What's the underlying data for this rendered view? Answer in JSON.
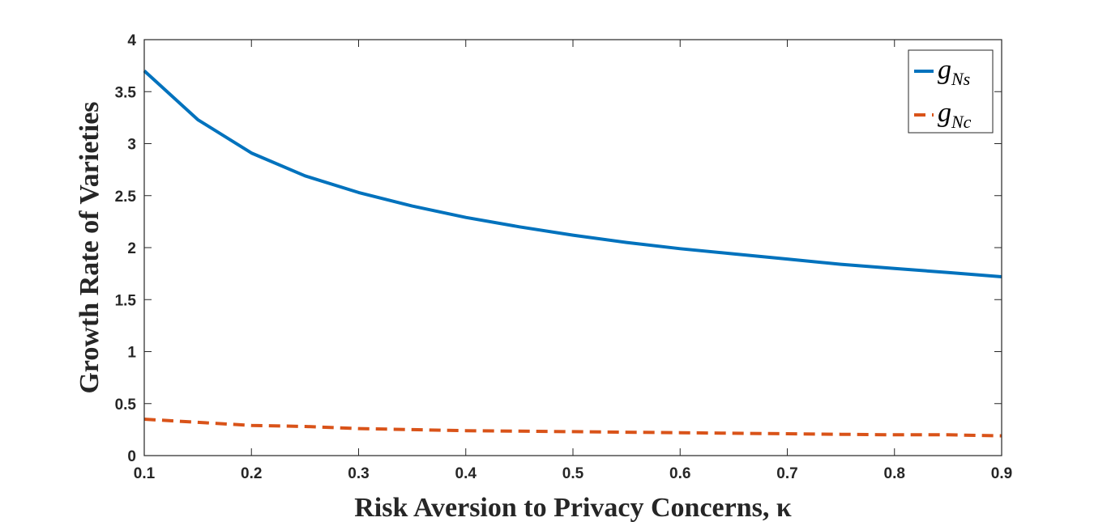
{
  "chart_data": {
    "type": "line",
    "xlabel": "Risk Aversion to Privacy Concerns, κ",
    "ylabel": "Growth Rate of Varieties",
    "xlim": [
      0.1,
      0.9
    ],
    "ylim": [
      0,
      4
    ],
    "xticks": [
      "0.1",
      "0.2",
      "0.3",
      "0.4",
      "0.5",
      "0.6",
      "0.7",
      "0.8",
      "0.9"
    ],
    "yticks": [
      "0",
      "0.5",
      "1",
      "1.5",
      "2",
      "2.5",
      "3",
      "3.5",
      "4"
    ],
    "grid": false,
    "legend_position": "top-right",
    "x": [
      0.1,
      0.15,
      0.2,
      0.25,
      0.3,
      0.35,
      0.4,
      0.45,
      0.5,
      0.55,
      0.6,
      0.65,
      0.7,
      0.75,
      0.8,
      0.85,
      0.9
    ],
    "series": [
      {
        "name": "g_Ns",
        "legend_main": "g",
        "legend_sub": "Ns",
        "color": "#0072BD",
        "style": "solid",
        "values": [
          3.7,
          3.23,
          2.91,
          2.69,
          2.53,
          2.4,
          2.29,
          2.2,
          2.12,
          2.05,
          1.99,
          1.94,
          1.89,
          1.84,
          1.8,
          1.76,
          1.72
        ]
      },
      {
        "name": "g_Nc",
        "legend_main": "g",
        "legend_sub": "Nc",
        "color": "#D95319",
        "style": "dashed",
        "values": [
          0.35,
          0.32,
          0.29,
          0.28,
          0.26,
          0.25,
          0.24,
          0.235,
          0.23,
          0.225,
          0.22,
          0.215,
          0.21,
          0.205,
          0.2,
          0.2,
          0.19
        ]
      }
    ]
  }
}
